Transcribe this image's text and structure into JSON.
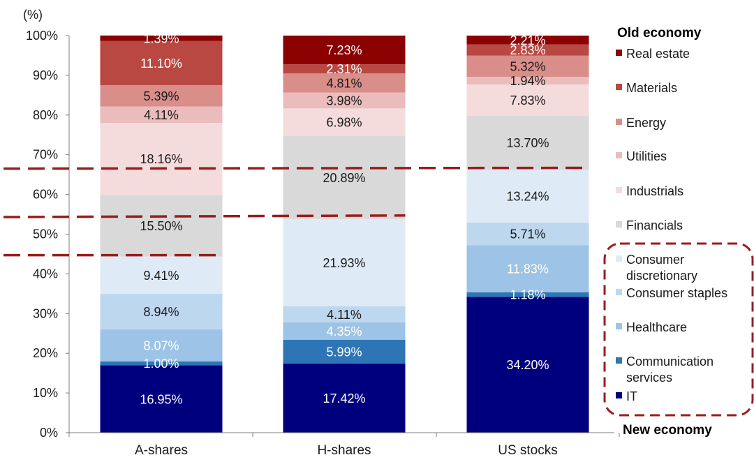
{
  "chart_data": {
    "type": "bar",
    "stacked": true,
    "ylabel": "(%)",
    "ylim": [
      0,
      100
    ],
    "y_ticks": [
      "0%",
      "10%",
      "20%",
      "30%",
      "40%",
      "50%",
      "60%",
      "70%",
      "80%",
      "90%",
      "100%"
    ],
    "categories": [
      "A-shares",
      "H-shares",
      "US stocks"
    ],
    "series": [
      {
        "name": "IT",
        "color": "#00007F",
        "label_color": "#ffffff",
        "values": [
          16.95,
          17.42,
          34.2
        ],
        "labels": [
          "16.95%",
          "17.42%",
          "34.20%"
        ]
      },
      {
        "name": "Communication services",
        "color": "#2E75B6",
        "label_color": "#ffffff",
        "values": [
          1.0,
          5.99,
          1.18
        ],
        "labels": [
          "1.00%",
          "5.99%",
          "1.18%"
        ]
      },
      {
        "name": "Healthcare",
        "color": "#9DC3E6",
        "label_color": "#ffffff",
        "values": [
          8.07,
          4.35,
          11.83
        ],
        "labels": [
          "8.07%",
          "4.35%",
          "11.83%"
        ]
      },
      {
        "name": "Consumer staples",
        "color": "#BDD7EE",
        "label_color": "#1a1a1a",
        "values": [
          8.94,
          4.11,
          5.71
        ],
        "labels": [
          "8.94%",
          "4.11%",
          "5.71%"
        ]
      },
      {
        "name": "Consumer discretionary",
        "color": "#DEEBF7",
        "label_color": "#1a1a1a",
        "values": [
          9.41,
          21.93,
          13.24
        ],
        "labels": [
          "9.41%",
          "21.93%",
          "13.24%"
        ]
      },
      {
        "name": "Financials",
        "color": "#D9D9D9",
        "label_color": "#1a1a1a",
        "values": [
          15.5,
          20.89,
          13.7
        ],
        "labels": [
          "15.50%",
          "20.89%",
          "13.70%"
        ]
      },
      {
        "name": "Industrials",
        "color": "#F5DCDC",
        "label_color": "#1a1a1a",
        "values": [
          18.16,
          6.98,
          7.83
        ],
        "labels": [
          "18.16%",
          "6.98%",
          "7.83%"
        ]
      },
      {
        "name": "Utilities",
        "color": "#EBBCBC",
        "label_color": "#1a1a1a",
        "values": [
          4.11,
          3.98,
          1.94
        ],
        "labels": [
          "4.11%",
          "3.98%",
          "1.94%"
        ]
      },
      {
        "name": "Energy",
        "color": "#D98E89",
        "label_color": "#1a1a1a",
        "values": [
          5.39,
          4.81,
          5.32
        ],
        "labels": [
          "5.39%",
          "4.81%",
          "5.32%"
        ]
      },
      {
        "name": "Materials",
        "color": "#B94842",
        "label_color": "#ffffff",
        "values": [
          11.1,
          2.31,
          2.83
        ],
        "labels": [
          "11.10%",
          "2.31%",
          "2.83%"
        ]
      },
      {
        "name": "Real estate",
        "color": "#8B0000",
        "label_color": "#ffffff",
        "values": [
          1.39,
          7.23,
          2.21
        ],
        "labels": [
          "1.39%",
          "7.23%",
          "2.21%"
        ]
      }
    ],
    "legend": {
      "placement": "right",
      "old_economy_header": "Old economy",
      "new_economy_header": "New economy",
      "old_economy_items": [
        "Real estate",
        "Materials",
        "Energy",
        "Utilities",
        "Industrials",
        "Financials"
      ],
      "new_economy_items": [
        "Consumer discretionary",
        "Consumer staples",
        "Healthcare",
        "Communication services",
        "IT"
      ],
      "old_economy_display": [
        [
          "Real estate"
        ],
        [
          "Materials"
        ],
        [
          "Energy"
        ],
        [
          "Utilities"
        ],
        [
          "Industrials"
        ],
        [
          "Financials"
        ]
      ],
      "new_economy_display": [
        [
          "Consumer",
          "discretionary"
        ],
        [
          "Consumer staples"
        ],
        [
          "Healthcare"
        ],
        [
          "Communication",
          "services"
        ],
        [
          "IT"
        ]
      ]
    },
    "dashed_lines": [
      {
        "color": "#9B1C1C",
        "y_left": 44.7,
        "y_right": 44.7,
        "x_from": "axis",
        "x_to": "bar_A_right"
      },
      {
        "color": "#9B1C1C",
        "y_left": 54.3,
        "y_right": 54.7,
        "x_from": "axis",
        "x_to": "bar_H_right"
      },
      {
        "color": "#9B1C1C",
        "y_left": 66.5,
        "y_right": 66.7,
        "x_from": "axis",
        "x_to": "bar_US_right"
      }
    ],
    "new_economy_box_color": "#9B1C1C",
    "grid": false
  }
}
